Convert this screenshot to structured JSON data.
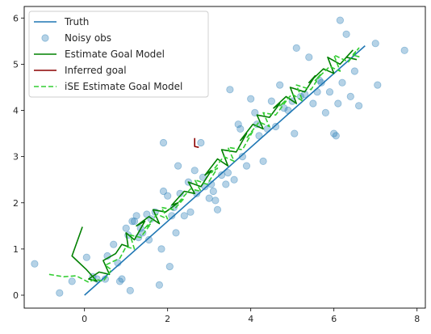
{
  "chart_data": {
    "type": "line",
    "title": "",
    "xlabel": "",
    "ylabel": "",
    "xlim": [
      -1.45,
      8.2
    ],
    "ylim": [
      -0.28,
      6.25
    ],
    "xticks": [
      0,
      2,
      4,
      6,
      8
    ],
    "yticks": [
      0,
      1,
      2,
      3,
      4,
      5,
      6
    ],
    "grid": false,
    "legend_position": "top-left",
    "series": [
      {
        "name": "Truth",
        "kind": "line",
        "color": "#1f77b4",
        "style": "solid",
        "x": [
          0.0,
          6.75
        ],
        "y": [
          0.0,
          5.4
        ]
      },
      {
        "name": "Noisy obs",
        "kind": "scatter",
        "color": "#1f77b4",
        "x": [
          -1.2,
          -0.6,
          -0.3,
          0.05,
          0.2,
          0.3,
          0.5,
          0.55,
          0.7,
          0.8,
          0.85,
          0.9,
          1.0,
          1.05,
          1.1,
          1.15,
          1.2,
          1.25,
          1.3,
          1.35,
          1.4,
          1.5,
          1.55,
          1.6,
          1.7,
          1.8,
          1.85,
          1.9,
          2.0,
          2.05,
          2.1,
          2.15,
          2.2,
          2.3,
          2.4,
          2.5,
          2.55,
          2.65,
          2.7,
          2.8,
          2.85,
          2.9,
          3.0,
          3.05,
          3.1,
          3.15,
          3.2,
          3.3,
          3.4,
          3.45,
          3.5,
          3.6,
          3.7,
          3.75,
          3.8,
          3.9,
          4.0,
          4.1,
          4.15,
          4.2,
          4.3,
          4.4,
          4.5,
          4.6,
          4.7,
          4.8,
          4.9,
          5.0,
          5.05,
          5.1,
          5.2,
          5.3,
          5.4,
          5.5,
          5.6,
          5.7,
          5.8,
          5.9,
          6.0,
          6.05,
          6.1,
          6.2,
          6.3,
          6.4,
          6.5,
          6.6,
          7.0,
          7.05,
          7.7,
          5.65,
          6.15,
          1.9,
          2.25
        ],
        "y": [
          0.68,
          0.05,
          0.3,
          0.82,
          0.4,
          0.35,
          0.35,
          0.85,
          1.1,
          0.7,
          0.3,
          0.35,
          1.45,
          1.3,
          0.1,
          1.6,
          1.6,
          1.72,
          1.25,
          1.45,
          1.35,
          1.75,
          1.2,
          1.65,
          1.8,
          0.22,
          1.0,
          2.25,
          2.15,
          0.62,
          1.72,
          1.9,
          1.35,
          2.2,
          1.72,
          2.45,
          1.8,
          2.7,
          2.2,
          3.3,
          2.55,
          2.35,
          2.1,
          2.4,
          2.25,
          2.05,
          1.85,
          2.6,
          2.4,
          2.65,
          4.45,
          2.5,
          3.7,
          3.6,
          3.0,
          2.8,
          4.25,
          3.95,
          3.7,
          3.45,
          2.9,
          3.6,
          4.2,
          3.65,
          4.55,
          4.05,
          4.0,
          4.2,
          3.5,
          5.35,
          4.3,
          4.35,
          5.15,
          4.15,
          4.4,
          4.6,
          3.95,
          4.4,
          3.5,
          3.45,
          4.15,
          4.6,
          5.65,
          4.3,
          4.85,
          4.1,
          5.45,
          4.55,
          5.3,
          4.65,
          5.95,
          3.3,
          2.8
        ]
      },
      {
        "name": "Estimate Goal Model",
        "kind": "line",
        "color": "#008000",
        "style": "solid",
        "x": [
          -0.05,
          -0.3,
          0.05,
          0.3,
          0.1,
          0.35,
          0.6,
          0.45,
          0.75,
          0.9,
          1.05,
          1.0,
          1.2,
          1.45,
          1.25,
          1.55,
          1.8,
          1.65,
          1.95,
          2.25,
          2.1,
          2.4,
          2.65,
          2.5,
          2.8,
          3.05,
          2.9,
          3.2,
          3.45,
          3.3,
          3.65,
          3.9,
          3.75,
          4.05,
          4.3,
          4.15,
          4.45,
          4.7,
          4.55,
          4.85,
          5.1,
          4.95,
          5.3,
          5.55,
          5.4,
          5.75,
          6.0,
          5.85,
          6.15,
          6.45,
          6.3,
          6.55
        ],
        "y": [
          1.48,
          0.85,
          0.55,
          0.3,
          0.35,
          0.5,
          0.45,
          0.75,
          0.9,
          1.1,
          1.05,
          1.35,
          1.2,
          1.6,
          1.5,
          1.7,
          1.55,
          1.85,
          1.8,
          2.0,
          1.95,
          2.25,
          2.2,
          2.45,
          2.35,
          2.7,
          2.6,
          2.95,
          2.8,
          3.15,
          3.1,
          3.5,
          3.35,
          3.7,
          3.6,
          3.9,
          3.85,
          4.15,
          4.05,
          4.3,
          4.15,
          4.5,
          4.4,
          4.75,
          4.6,
          4.9,
          4.8,
          5.15,
          5.0,
          5.3,
          5.15,
          5.1
        ]
      },
      {
        "name": "Inferred goal",
        "kind": "line",
        "color": "#8b0000",
        "style": "solid",
        "x": [
          2.65,
          2.65,
          2.75
        ],
        "y": [
          3.4,
          3.22,
          3.2
        ]
      },
      {
        "name": "iSE Estimate Goal Model",
        "kind": "line",
        "color": "#32cd32",
        "style": "dashed",
        "x": [
          -0.85,
          -0.5,
          -0.2,
          0.1,
          0.25,
          0.45,
          0.65,
          0.5,
          0.85,
          1.0,
          1.2,
          1.1,
          1.35,
          1.6,
          1.45,
          1.75,
          2.0,
          1.85,
          2.15,
          2.4,
          2.25,
          2.55,
          2.8,
          2.65,
          2.95,
          3.2,
          3.05,
          3.35,
          3.6,
          3.45,
          3.8,
          4.05,
          3.9,
          4.2,
          4.45,
          4.3,
          4.6,
          4.85,
          4.7,
          5.0,
          5.25,
          5.1,
          5.45,
          5.7,
          5.55,
          5.9,
          6.15,
          6.0,
          6.35,
          6.6,
          6.45,
          6.65
        ],
        "y": [
          0.45,
          0.4,
          0.42,
          0.28,
          0.35,
          0.3,
          0.55,
          0.65,
          0.8,
          1.05,
          1.0,
          1.3,
          1.25,
          1.55,
          1.45,
          1.75,
          1.65,
          1.9,
          1.85,
          2.1,
          2.0,
          2.3,
          2.25,
          2.5,
          2.4,
          2.75,
          2.65,
          3.0,
          2.9,
          3.2,
          3.15,
          3.55,
          3.4,
          3.75,
          3.65,
          3.95,
          3.9,
          4.2,
          4.1,
          4.35,
          4.2,
          4.55,
          4.45,
          4.8,
          4.65,
          4.95,
          4.85,
          5.2,
          5.05,
          5.35,
          5.2,
          5.15
        ]
      }
    ]
  }
}
